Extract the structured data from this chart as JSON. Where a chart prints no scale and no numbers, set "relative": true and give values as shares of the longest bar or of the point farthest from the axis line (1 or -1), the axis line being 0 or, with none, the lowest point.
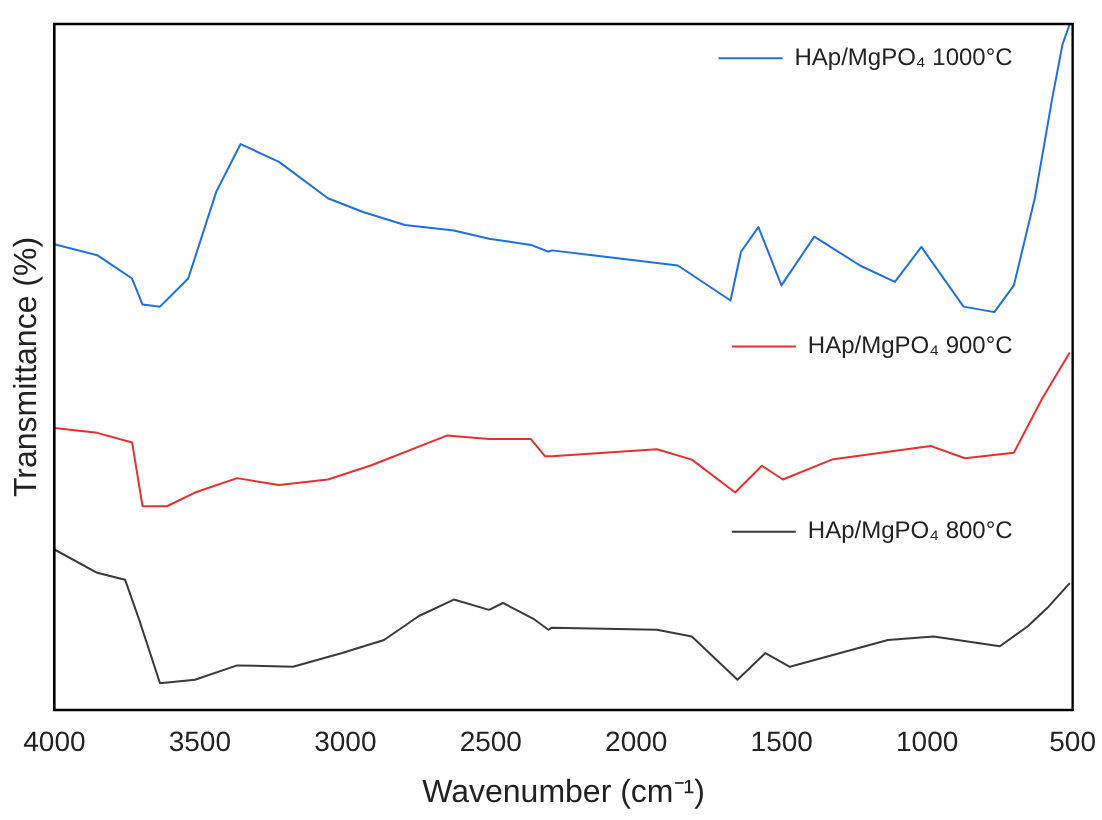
{
  "chart_data": {
    "type": "line",
    "xlabel": "Wavenumber (cm⁻¹)",
    "ylabel": "Transmittance (%)",
    "relative": true,
    "xlim": [
      4000,
      500
    ],
    "xticks": [
      4000,
      3500,
      3000,
      2500,
      2000,
      1500,
      1000,
      500
    ],
    "grid": false,
    "legend": "right",
    "marker": "none",
    "line_style": "solid",
    "series": [
      {
        "name": "HAp/MgPO₄ 1000°C",
        "color": "#1f6fe0",
        "x": [
          4000,
          3853,
          3733,
          3697,
          3637,
          3540,
          3444,
          3360,
          3228,
          3060,
          2939,
          2795,
          2627,
          2506,
          2362,
          2302,
          2290,
          1857,
          1676,
          1640,
          1580,
          1501,
          1388,
          1231,
          1111,
          1020,
          875,
          769,
          702,
          630,
          570,
          535,
          510
        ],
        "values": [
          0.679,
          0.663,
          0.629,
          0.591,
          0.588,
          0.629,
          0.755,
          0.825,
          0.799,
          0.746,
          0.726,
          0.707,
          0.699,
          0.687,
          0.678,
          0.668,
          0.67,
          0.648,
          0.597,
          0.668,
          0.704,
          0.619,
          0.69,
          0.648,
          0.624,
          0.675,
          0.588,
          0.58,
          0.619,
          0.746,
          0.892,
          0.97,
          1.0
        ]
      },
      {
        "name": "HAp/MgPO₄ 900°C",
        "color": "#e8302e",
        "x": [
          4000,
          3853,
          3733,
          3697,
          3613,
          3517,
          3372,
          3228,
          3060,
          2915,
          2651,
          2506,
          2362,
          2314,
          2290,
          1929,
          1809,
          1660,
          1568,
          1496,
          1328,
          989,
          870,
          702,
          606,
          510
        ],
        "values": [
          0.411,
          0.404,
          0.39,
          0.297,
          0.297,
          0.317,
          0.338,
          0.328,
          0.336,
          0.356,
          0.4,
          0.395,
          0.395,
          0.37,
          0.37,
          0.38,
          0.365,
          0.317,
          0.356,
          0.336,
          0.365,
          0.385,
          0.367,
          0.375,
          0.453,
          0.521
        ]
      },
      {
        "name": "HAp/MgPO₄ 800°C",
        "color": "#3a3a3a",
        "x": [
          4000,
          3853,
          3757,
          3709,
          3637,
          3517,
          3372,
          3180,
          3011,
          2867,
          2747,
          2627,
          2506,
          2458,
          2350,
          2302,
          2290,
          1929,
          1809,
          1652,
          1556,
          1472,
          1135,
          978,
          750,
          654,
          582,
          510
        ],
        "values": [
          0.234,
          0.2,
          0.19,
          0.132,
          0.039,
          0.044,
          0.065,
          0.063,
          0.083,
          0.102,
          0.137,
          0.161,
          0.146,
          0.156,
          0.132,
          0.117,
          0.12,
          0.117,
          0.107,
          0.044,
          0.083,
          0.063,
          0.102,
          0.107,
          0.093,
          0.122,
          0.151,
          0.185
        ]
      }
    ]
  }
}
